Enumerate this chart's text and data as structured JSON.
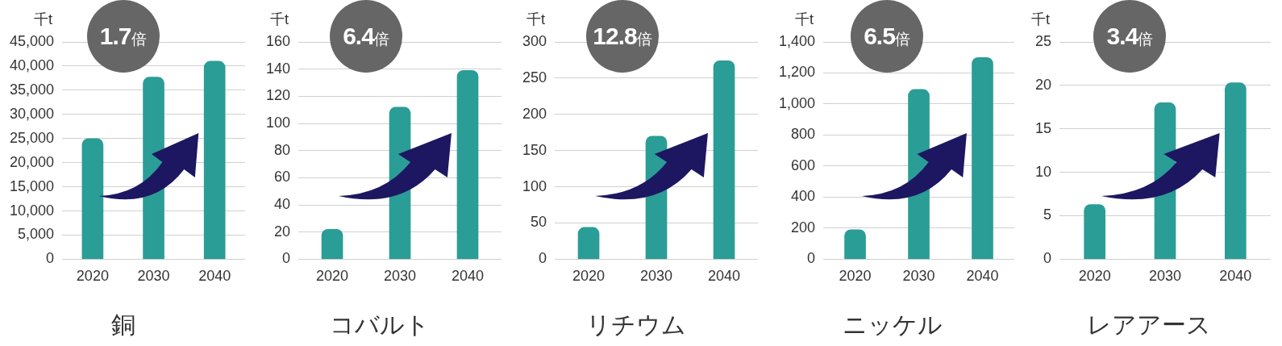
{
  "chart_data": [
    {
      "type": "bar",
      "title": "銅",
      "ylabel": "千t",
      "categories": [
        "2020",
        "2030",
        "2040"
      ],
      "values": [
        25000,
        37700,
        41000
      ],
      "color": "#2a9d96",
      "ylim": [
        0,
        45000
      ],
      "yticks": [
        0,
        {
          "value": 5000,
          "label": "5,000"
        },
        {
          "value": 10000,
          "label": "10,000"
        },
        {
          "value": 15000,
          "label": "15,000"
        },
        {
          "value": 20000,
          "label": "20,000"
        },
        {
          "value": 25000,
          "label": "25,000"
        },
        {
          "value": 30000,
          "label": "30,000"
        },
        {
          "value": 35000,
          "label": "35,000"
        },
        {
          "value": 40000,
          "label": "40,000"
        },
        {
          "value": 45000,
          "label": "45,000"
        }
      ],
      "grid": "y",
      "annotations": [
        "1.7倍"
      ]
    },
    {
      "type": "bar",
      "title": "コバルト",
      "ylabel": "千t",
      "categories": [
        "2020",
        "2030",
        "2040"
      ],
      "values": [
        22,
        112,
        139
      ],
      "color": "#2a9d96",
      "ylim": [
        0,
        160
      ],
      "yticks": [
        0,
        20,
        40,
        60,
        80,
        100,
        120,
        140,
        160
      ],
      "grid": "y",
      "annotations": [
        "6.4倍"
      ]
    },
    {
      "type": "bar",
      "title": "リチウム",
      "ylabel": "千t",
      "categories": [
        "2020",
        "2030",
        "2040"
      ],
      "values": [
        44,
        170,
        274
      ],
      "color": "#2a9d96",
      "ylim": [
        0,
        300
      ],
      "yticks": [
        0,
        50,
        100,
        150,
        200,
        250,
        300
      ],
      "grid": "y",
      "annotations": [
        "12.8倍"
      ]
    },
    {
      "type": "bar",
      "title": "ニッケル",
      "ylabel": "千t",
      "categories": [
        "2020",
        "2030",
        "2040"
      ],
      "values": [
        190,
        1094,
        1300
      ],
      "color": "#2a9d96",
      "ylim": [
        0,
        1400
      ],
      "yticks": [
        0,
        200,
        400,
        600,
        800,
        {
          "value": 1000,
          "label": "1,000"
        },
        {
          "value": 1200,
          "label": "1,200"
        },
        {
          "value": 1400,
          "label": "1,400"
        }
      ],
      "grid": "y",
      "annotations": [
        "6.5倍"
      ]
    },
    {
      "type": "bar",
      "title": "レアアース",
      "ylabel": "千t",
      "categories": [
        "2020",
        "2030",
        "2040"
      ],
      "values": [
        6.3,
        18,
        20.3
      ],
      "color": "#2a9d96",
      "ylim": [
        0,
        25
      ],
      "yticks": [
        0,
        5,
        10,
        15,
        20,
        25
      ],
      "grid": "y",
      "annotations": [
        "3.4倍"
      ]
    }
  ]
}
